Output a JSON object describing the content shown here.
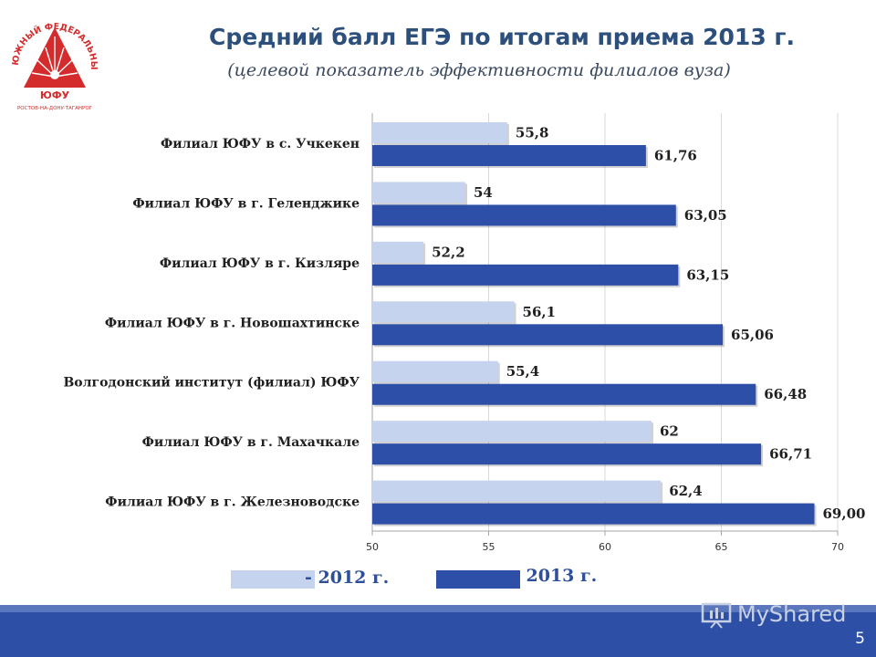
{
  "header": {
    "title": "Средний балл ЕГЭ по итогам приема 2013 г.",
    "subtitle": "(целевой показатель эффективности филиалов вуза)"
  },
  "logo": {
    "ring_text": "ЮЖНЫЙ ФЕДЕРАЛЬНЫЙ УНИВЕРСИТЕТ",
    "abbrev": "ЮФУ",
    "city_text": "РОСТОВ-НА-ДОНУ·ТАГАНРОГ",
    "color": "#d42c2c"
  },
  "chart_data": {
    "type": "bar",
    "orientation": "horizontal",
    "categories": [
      "Филиал ЮФУ в с. Учкекен",
      "Филиал ЮФУ в г. Геленджике",
      "Филиал ЮФУ в г. Кизляре",
      "Филиал ЮФУ в г. Новошахтинске",
      "Волгодонский институт (филиал) ЮФУ",
      "Филиал ЮФУ в г. Махачкале",
      "Филиал ЮФУ в г. Железноводске"
    ],
    "series": [
      {
        "name": "- 2012 г.",
        "color": "#c5d3ee",
        "values": [
          55.8,
          54,
          52.2,
          56.1,
          55.4,
          62,
          62.4
        ],
        "labels": [
          "55,8",
          "54",
          "52,2",
          "56,1",
          "55,4",
          "62",
          "62,4"
        ]
      },
      {
        "name": "- 2013 г.",
        "color": "#2e4fa8",
        "values": [
          61.76,
          63.05,
          63.15,
          65.06,
          66.48,
          66.71,
          69.0
        ],
        "labels": [
          "61,76",
          "63,05",
          "63,15",
          "65,06",
          "66,48",
          "66,71",
          "69,00"
        ]
      }
    ],
    "xlim": [
      50,
      70
    ],
    "xticks": [
      50,
      55,
      60,
      65,
      70
    ],
    "grid": true,
    "legend_position": "bottom"
  },
  "legend": {
    "label_2012": "- 2012 г.",
    "label_2013": "- 2013 г."
  },
  "footer": {
    "page_number": "5",
    "watermark": "MyShared",
    "color": "#2d50a6"
  }
}
